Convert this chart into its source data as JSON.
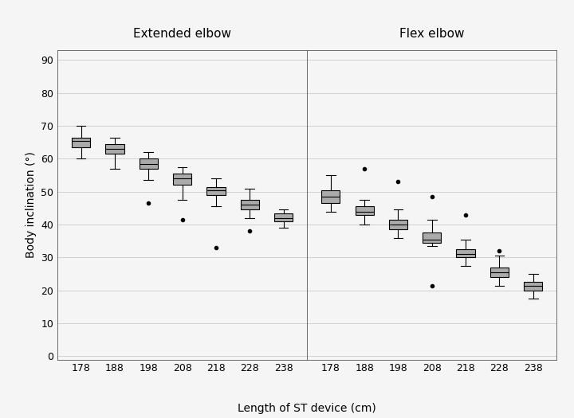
{
  "extended_elbow": {
    "178": {
      "whislo": 60.0,
      "q1": 63.5,
      "med": 65.5,
      "q3": 66.5,
      "whishi": 70.0,
      "fliers": []
    },
    "188": {
      "whislo": 57.0,
      "q1": 61.5,
      "med": 63.0,
      "q3": 64.5,
      "whishi": 66.5,
      "fliers": []
    },
    "198": {
      "whislo": 53.5,
      "q1": 57.0,
      "med": 58.5,
      "q3": 60.0,
      "whishi": 62.0,
      "fliers": [
        46.5
      ]
    },
    "208": {
      "whislo": 47.5,
      "q1": 52.0,
      "med": 54.0,
      "q3": 55.5,
      "whishi": 57.5,
      "fliers": [
        41.5
      ]
    },
    "218": {
      "whislo": 45.5,
      "q1": 49.0,
      "med": 50.5,
      "q3": 51.5,
      "whishi": 54.0,
      "fliers": [
        33.0
      ]
    },
    "228": {
      "whislo": 42.0,
      "q1": 44.5,
      "med": 46.0,
      "q3": 47.5,
      "whishi": 51.0,
      "fliers": [
        38.0
      ]
    },
    "238": {
      "whislo": 39.0,
      "q1": 41.0,
      "med": 42.0,
      "q3": 43.5,
      "whishi": 44.5,
      "fliers": []
    }
  },
  "flex_elbow": {
    "178": {
      "whislo": 44.0,
      "q1": 46.5,
      "med": 48.5,
      "q3": 50.5,
      "whishi": 55.0,
      "fliers": []
    },
    "188": {
      "whislo": 40.0,
      "q1": 43.0,
      "med": 44.0,
      "q3": 45.5,
      "whishi": 47.5,
      "fliers": [
        57.0
      ]
    },
    "198": {
      "whislo": 36.0,
      "q1": 38.5,
      "med": 40.0,
      "q3": 41.5,
      "whishi": 44.5,
      "fliers": [
        53.0
      ]
    },
    "208": {
      "whislo": 33.5,
      "q1": 34.5,
      "med": 35.5,
      "q3": 37.5,
      "whishi": 41.5,
      "fliers": [
        21.5,
        48.5
      ]
    },
    "218": {
      "whislo": 27.5,
      "q1": 30.0,
      "med": 31.0,
      "q3": 32.5,
      "whishi": 35.5,
      "fliers": [
        43.0
      ]
    },
    "228": {
      "whislo": 21.5,
      "q1": 24.0,
      "med": 25.5,
      "q3": 27.0,
      "whishi": 30.5,
      "fliers": [
        32.0
      ]
    },
    "238": {
      "whislo": 17.5,
      "q1": 20.0,
      "med": 21.5,
      "q3": 22.5,
      "whishi": 25.0,
      "fliers": []
    }
  },
  "categories": [
    "178",
    "188",
    "198",
    "208",
    "218",
    "228",
    "238"
  ],
  "ylim": [
    -1,
    93
  ],
  "yticks": [
    0,
    10,
    20,
    30,
    40,
    50,
    60,
    70,
    80,
    90
  ],
  "xlabel": "Length of ST device (cm)",
  "ylabel": "Body inclination (°)",
  "title_left": "Extended elbow",
  "title_right": "Flex elbow",
  "box_facecolor": "#aaaaaa",
  "box_edgecolor": "#000000",
  "whisker_color": "#000000",
  "median_color": "#000000",
  "flier_color": "#000000",
  "background_color": "#f5f5f5",
  "plot_bg_color": "#f5f5f5",
  "grid_color": "#d0d0d0",
  "box_width": 0.55,
  "linewidth": 0.8,
  "title_fontsize": 11,
  "label_fontsize": 10,
  "tick_fontsize": 9
}
